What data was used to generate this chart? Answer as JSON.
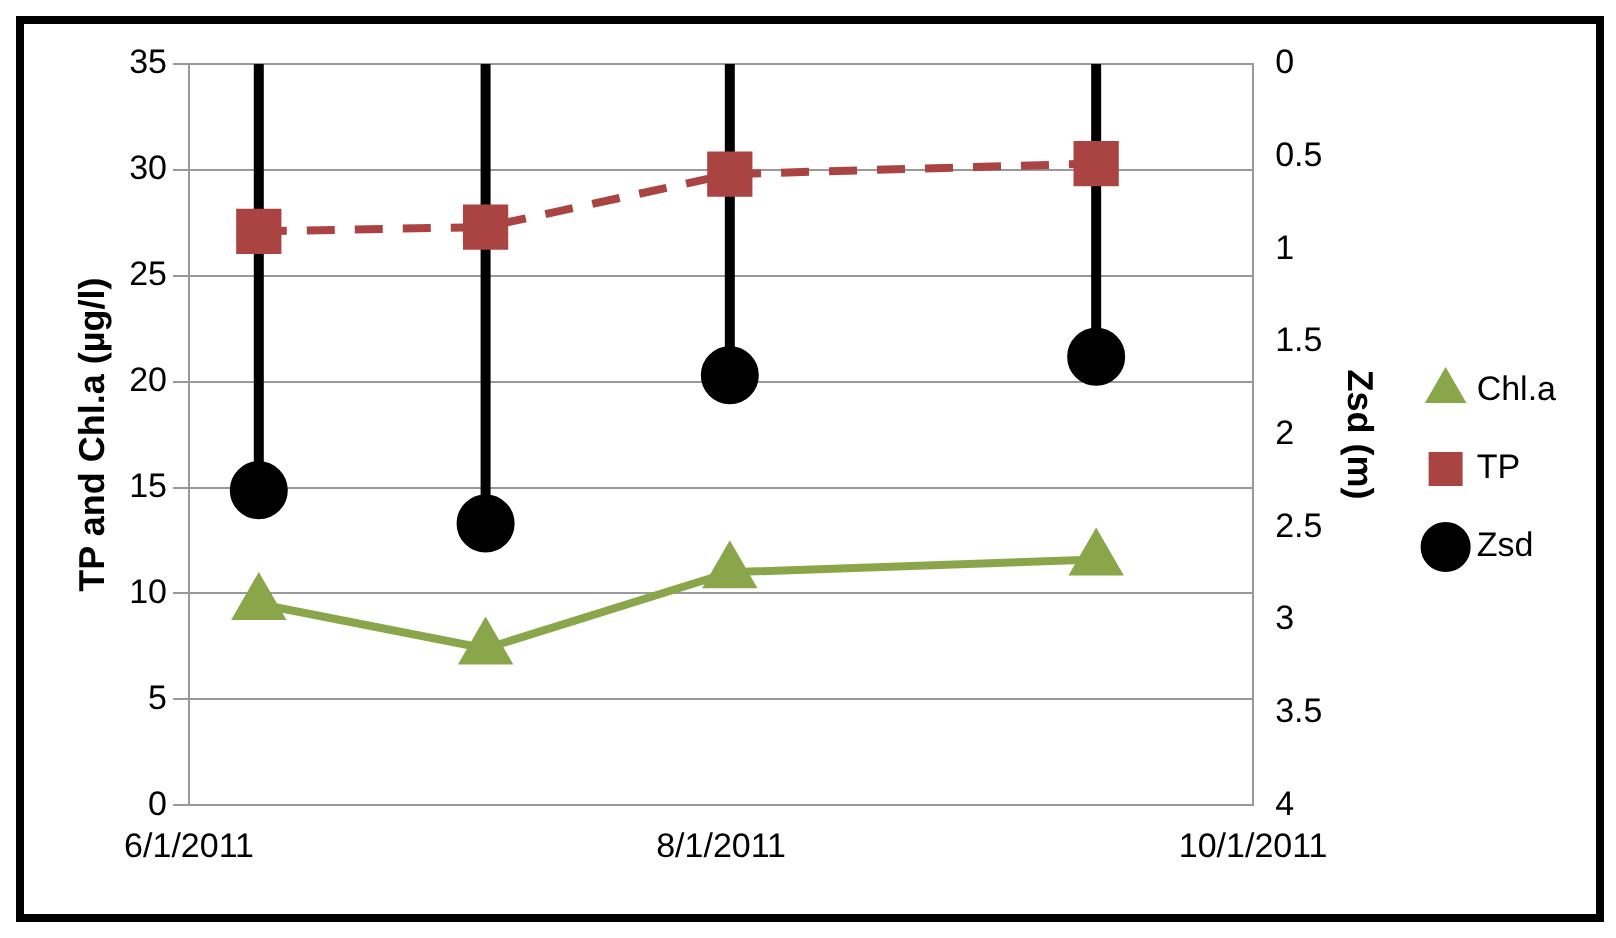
{
  "chart_data": {
    "type": "line",
    "ylabel": "TP and Chl.a (µg/l)",
    "y2label": "Zsd (m)",
    "x": [
      "2011-06-09",
      "2011-07-05",
      "2011-08-02",
      "2011-09-13"
    ],
    "series": [
      {
        "name": "Chl.a",
        "color": "#8aa64a",
        "values": [
          9.5,
          7.4,
          11.0,
          11.6
        ],
        "marker": "triangle",
        "line_style": "solid"
      },
      {
        "name": "TP",
        "color": "#a94442",
        "values": [
          27.1,
          27.3,
          29.8,
          30.3
        ],
        "marker": "square",
        "line_style": "dashed"
      },
      {
        "name": "Zsd",
        "type": "lollipop",
        "axis": "y2",
        "color": "#000000",
        "values": [
          2.3,
          2.48,
          1.68,
          1.58
        ],
        "marker": "circle"
      }
    ],
    "xlim": [
      "2011-06-01",
      "2011-10-01"
    ],
    "xticks": [
      {
        "value": "2011-06-01",
        "label": "6/1/2011"
      },
      {
        "value": "2011-08-01",
        "label": "8/1/2011"
      },
      {
        "value": "2011-10-01",
        "label": "10/1/2011"
      }
    ],
    "ylim": [
      0,
      35
    ],
    "yticks": [
      0,
      5,
      10,
      15,
      20,
      25,
      30,
      35
    ],
    "y2lim": [
      4,
      0
    ],
    "y2ticks": [
      0,
      0.5,
      1,
      1.5,
      2,
      2.5,
      3,
      3.5,
      4
    ],
    "grid": "y",
    "legend": "right"
  }
}
